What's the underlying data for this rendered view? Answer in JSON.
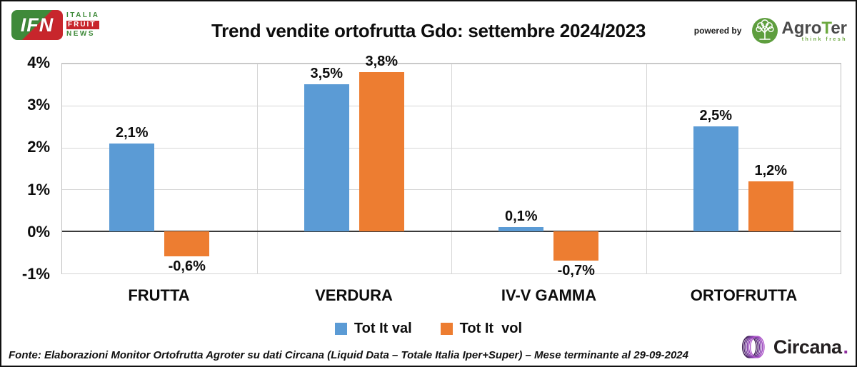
{
  "header": {
    "ifn": {
      "abbr": "IFN",
      "line1": "ITALIA",
      "line2": "FRUIT",
      "line3": "NEWS"
    },
    "powered_by": "powered by",
    "agroter": {
      "name_pre": "Agro",
      "name_t": "T",
      "name_post": "er",
      "tagline": "think fresh"
    }
  },
  "chart_data": {
    "type": "bar",
    "title": "Trend vendite ortofrutta Gdo: settembre 2024/2023",
    "categories": [
      "FRUTTA",
      "VERDURA",
      "IV-V GAMMA",
      "ORTOFRUTTA"
    ],
    "series": [
      {
        "name": "Tot It val",
        "color": "#5b9bd5",
        "values": [
          2.1,
          3.5,
          0.1,
          2.5
        ],
        "labels": [
          "2,1%",
          "3,5%",
          "0,1%",
          "2,5%"
        ]
      },
      {
        "name": "Tot It  vol",
        "color": "#ed7d31",
        "values": [
          -0.6,
          3.8,
          -0.7,
          1.2
        ],
        "labels": [
          "-0,6%",
          "3,8%",
          "-0,7%",
          "1,2%"
        ]
      }
    ],
    "ylim": [
      -1,
      4
    ],
    "yticks": [
      4,
      3,
      2,
      1,
      0,
      -1
    ],
    "ytick_labels": [
      "4%",
      "3%",
      "2%",
      "1%",
      "0%",
      "-1%"
    ],
    "grid": true,
    "legend_position": "bottom"
  },
  "footer": {
    "source": "Fonte: Elaborazioni Monitor Ortofrutta Agroter su dati Circana (Liquid Data – Totale Italia Iper+Super) – Mese terminante al 29-09-2024",
    "circana_wordmark": "Circana",
    "circana_period": "."
  }
}
